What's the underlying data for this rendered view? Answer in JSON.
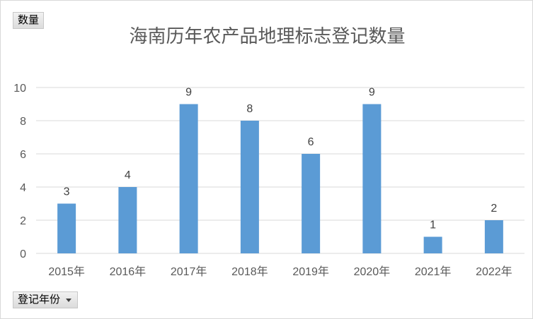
{
  "chart_data": {
    "type": "bar",
    "title": "海南历年农产品地理标志登记数量",
    "categories": [
      "2015年",
      "2016年",
      "2017年",
      "2018年",
      "2019年",
      "2020年",
      "2021年",
      "2022年"
    ],
    "values": [
      3,
      4,
      9,
      8,
      6,
      9,
      1,
      2
    ],
    "yticks": [
      0,
      2,
      4,
      6,
      8,
      10
    ],
    "ylim": [
      0,
      10
    ],
    "grid": true,
    "data_labels": true,
    "bar_color": "#5b9bd5",
    "grid_color": "#d9d9d9"
  },
  "pivot": {
    "value_field_label": "数量",
    "axis_field_label": "登记年份",
    "dropdown_icon": "triangle-down-icon"
  }
}
